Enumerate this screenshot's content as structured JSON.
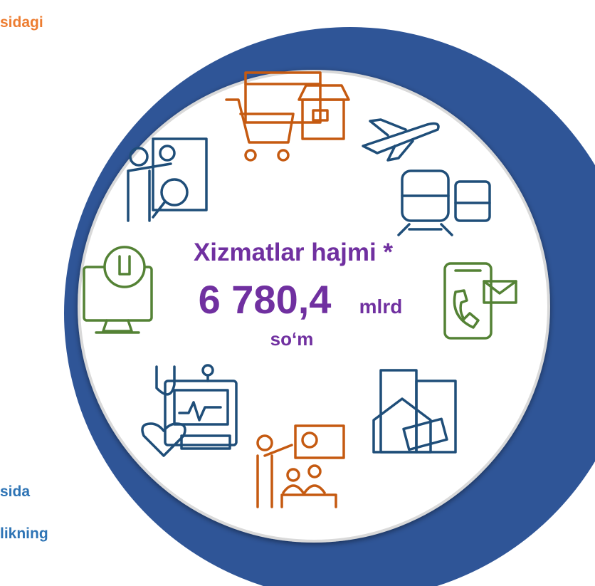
{
  "left_texts": {
    "top": "sidagi",
    "bottom_1": "sida",
    "bottom_2": "likning"
  },
  "center": {
    "heading": "Xizmatlar hajmi *",
    "value": "6 780,4",
    "unit_1": "mlrd",
    "unit_2": "so‘m"
  }
}
